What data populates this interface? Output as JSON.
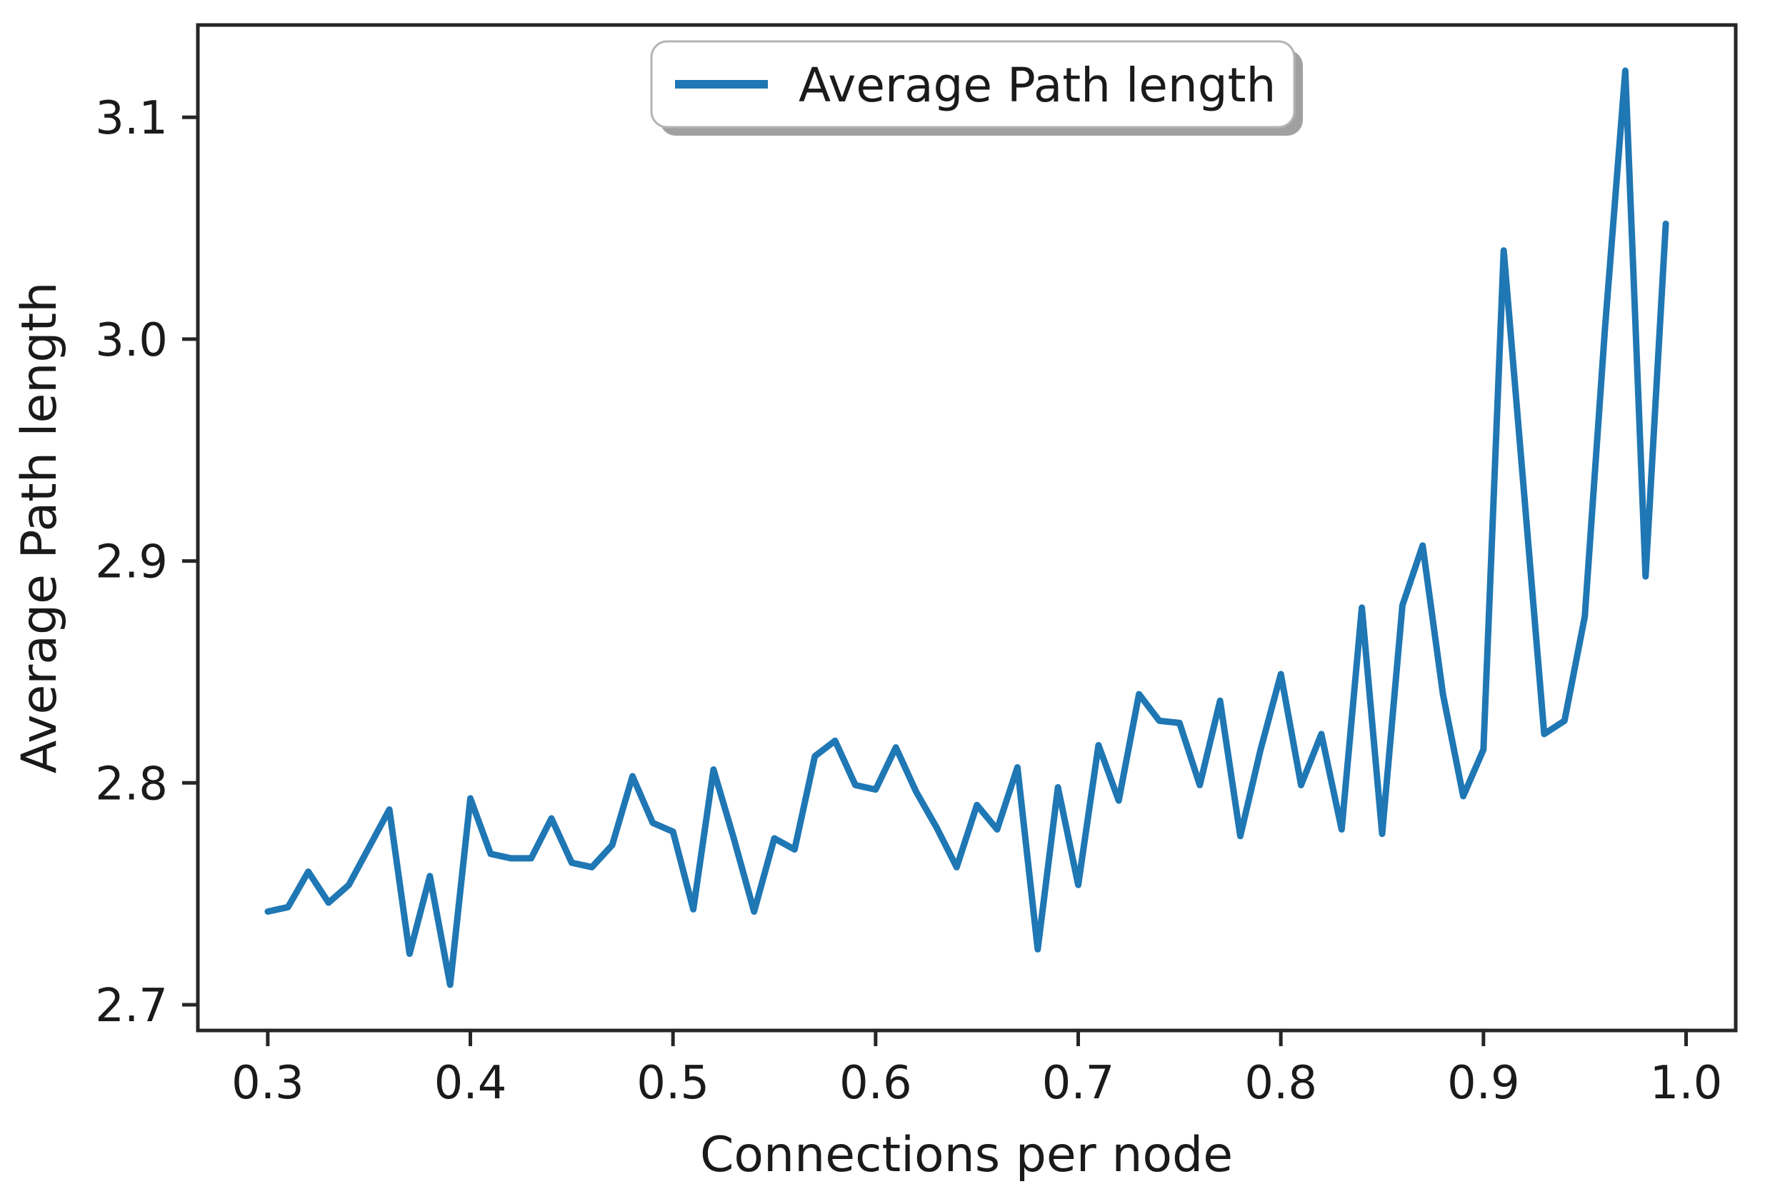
{
  "figure": {
    "background_color": "#ffffff",
    "frame_color": "#262626",
    "tick_color": "#262626",
    "text_color": "#1a1a1a",
    "legend_shadow_color": "#a0a0a0",
    "legend_edge_color": "#b4b4b4",
    "legend_fill_color": "#ffffff"
  },
  "chart_data": {
    "type": "line",
    "title": "",
    "xlabel": "Connections per node",
    "ylabel": "Average Path length",
    "legend": {
      "position": "upper center",
      "entries": [
        {
          "label": "Average Path length",
          "color": "#1f77b4"
        }
      ]
    },
    "grid": false,
    "xlim": [
      0.2655,
      1.0245
    ],
    "ylim": [
      2.6884,
      3.1416
    ],
    "xticks": [
      0.3,
      0.4,
      0.5,
      0.6,
      0.7,
      0.8,
      0.9,
      1.0
    ],
    "xtick_labels": [
      "0.3",
      "0.4",
      "0.5",
      "0.6",
      "0.7",
      "0.8",
      "0.9",
      "1.0"
    ],
    "yticks": [
      2.7,
      2.8,
      2.9,
      3.0,
      3.1
    ],
    "ytick_labels": [
      "2.7",
      "2.8",
      "2.9",
      "3.0",
      "3.1"
    ],
    "x": [
      0.3,
      0.31,
      0.32,
      0.33,
      0.34,
      0.35,
      0.36,
      0.37,
      0.38,
      0.39,
      0.4,
      0.41,
      0.42,
      0.43,
      0.44,
      0.45,
      0.46,
      0.47,
      0.48,
      0.49,
      0.5,
      0.51,
      0.52,
      0.53,
      0.54,
      0.55,
      0.56,
      0.57,
      0.58,
      0.59,
      0.6,
      0.61,
      0.62,
      0.63,
      0.64,
      0.65,
      0.66,
      0.67,
      0.68,
      0.69,
      0.7,
      0.71,
      0.72,
      0.73,
      0.74,
      0.75,
      0.76,
      0.77,
      0.78,
      0.79,
      0.8,
      0.81,
      0.82,
      0.83,
      0.84,
      0.85,
      0.86,
      0.87,
      0.88,
      0.89,
      0.9,
      0.91,
      0.92,
      0.93,
      0.94,
      0.95,
      0.96,
      0.97,
      0.98,
      0.99
    ],
    "series": [
      {
        "name": "Average Path length",
        "color": "#1f77b4",
        "line_width": 9,
        "values": [
          2.742,
          2.744,
          2.76,
          2.746,
          2.754,
          2.771,
          2.788,
          2.723,
          2.758,
          2.709,
          2.793,
          2.768,
          2.766,
          2.766,
          2.784,
          2.764,
          2.762,
          2.772,
          2.803,
          2.782,
          2.778,
          2.743,
          2.806,
          2.775,
          2.742,
          2.775,
          2.77,
          2.812,
          2.819,
          2.799,
          2.797,
          2.816,
          2.796,
          2.78,
          2.762,
          2.79,
          2.779,
          2.807,
          2.725,
          2.798,
          2.754,
          2.817,
          2.792,
          2.84,
          2.828,
          2.827,
          2.799,
          2.837,
          2.776,
          2.815,
          2.849,
          2.799,
          2.822,
          2.779,
          2.879,
          2.777,
          2.88,
          2.907,
          2.84,
          2.794,
          2.815,
          3.04,
          2.931,
          2.822,
          2.828,
          2.875,
          3.005,
          3.121,
          2.893,
          3.052
        ]
      }
    ]
  }
}
